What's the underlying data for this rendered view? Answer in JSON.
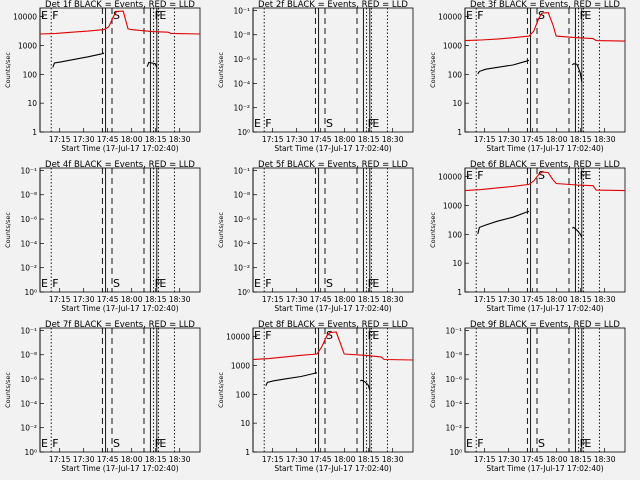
{
  "chart_data": [
    {
      "type": "line",
      "title": "Det 1f BLACK = Events, RED = LLD",
      "xlabel": "Start Time (17-Jul-17 17:02:40)",
      "ylabel": "Counts/sec",
      "yscale": "log",
      "ylim": [
        1,
        15000
      ],
      "ytick_labels": [
        "1",
        "10",
        "100",
        "1000",
        "10000"
      ],
      "xlim_minutes": [
        0,
        100
      ],
      "xtick_labels": [
        "17:15",
        "17:30",
        "17:45",
        "18:00",
        "18:15",
        "18:30"
      ],
      "markers": [
        "E",
        "F",
        "S",
        "F",
        "E"
      ],
      "has_data": true,
      "series": [
        {
          "name": "LLD",
          "color": "#e00000",
          "points": [
            [
              0,
              2000
            ],
            [
              10,
              2100
            ],
            [
              20,
              2300
            ],
            [
              30,
              2500
            ],
            [
              40,
              2800
            ],
            [
              43,
              3500
            ],
            [
              46,
              8000
            ],
            [
              48,
              11500
            ],
            [
              52,
              11800
            ],
            [
              55,
              3000
            ],
            [
              57,
              2800
            ],
            [
              70,
              2400
            ],
            [
              80,
              2300
            ],
            [
              82,
              2100
            ],
            [
              100,
              2000
            ]
          ]
        },
        {
          "name": "Events",
          "color": "#000000",
          "segments": [
            [
              [
                8,
                150
              ],
              [
                9,
                210
              ],
              [
                13,
                230
              ],
              [
                20,
                270
              ],
              [
                30,
                340
              ],
              [
                38,
                420
              ],
              [
                40,
                450
              ]
            ],
            [
              [
                67,
                160
              ],
              [
                68,
                220
              ],
              [
                70,
                210
              ],
              [
                72,
                200
              ],
              [
                73,
                150
              ]
            ]
          ]
        }
      ]
    },
    {
      "type": "line",
      "title": "Det 2f BLACK = Events, RED = LLD",
      "xlabel": "Start Time (17-Jul-17 17:02:40)",
      "ylabel": "Counts/sec",
      "yscale": "log",
      "ylim": [
        1,
        10
      ],
      "ytick_labels": [
        "10⁰",
        "10⁻²",
        "10⁻⁴",
        "10⁻⁶",
        "10⁻⁸",
        "10⁻¹"
      ],
      "xlim_minutes": [
        0,
        100
      ],
      "xtick_labels": [
        "17:15",
        "17:30",
        "17:45",
        "18:00",
        "18:15",
        "18:30"
      ],
      "markers": [
        "E",
        "F",
        "S",
        "F",
        "E"
      ],
      "has_data": false
    },
    {
      "type": "line",
      "title": "Det 3f BLACK = Events, RED = LLD",
      "xlabel": "Start Time (17-Jul-17 17:02:40)",
      "ylabel": "Counts/sec",
      "yscale": "log",
      "ylim": [
        1,
        15000
      ],
      "ytick_labels": [
        "1",
        "10",
        "100",
        "1000",
        "10000"
      ],
      "xlim_minutes": [
        0,
        100
      ],
      "xtick_labels": [
        "17:15",
        "17:30",
        "17:45",
        "18:00",
        "18:15",
        "18:30"
      ],
      "markers": [
        "E",
        "F",
        "S",
        "F",
        "E"
      ],
      "has_data": true,
      "series": [
        {
          "name": "LLD",
          "color": "#e00000",
          "points": [
            [
              0,
              1200
            ],
            [
              10,
              1250
            ],
            [
              20,
              1350
            ],
            [
              30,
              1500
            ],
            [
              40,
              1700
            ],
            [
              43,
              2500
            ],
            [
              46,
              6500
            ],
            [
              48,
              10000
            ],
            [
              52,
              10500
            ],
            [
              55,
              4000
            ],
            [
              57,
              1700
            ],
            [
              70,
              1500
            ],
            [
              80,
              1400
            ],
            [
              82,
              1200
            ],
            [
              100,
              1150
            ]
          ]
        },
        {
          "name": "Events",
          "color": "#000000",
          "segments": [
            [
              [
                8,
                90
              ],
              [
                9,
                110
              ],
              [
                13,
                130
              ],
              [
                20,
                150
              ],
              [
                30,
                180
              ],
              [
                38,
                240
              ],
              [
                40,
                260
              ]
            ],
            [
              [
                67,
                180
              ],
              [
                68,
                200
              ],
              [
                70,
                190
              ],
              [
                72,
                100
              ],
              [
                73,
                50
              ]
            ]
          ]
        }
      ]
    },
    {
      "type": "line",
      "title": "Det 4f BLACK = Events, RED = LLD",
      "xlabel": "Start Time (17-Jul-17 17:02:40)",
      "ylabel": "Counts/sec",
      "yscale": "log",
      "ylim": [
        1,
        10
      ],
      "ytick_labels": [
        "10⁰",
        "10⁻²",
        "10⁻⁴",
        "10⁻⁶",
        "10⁻⁸",
        "10⁻¹"
      ],
      "xlim_minutes": [
        0,
        100
      ],
      "xtick_labels": [
        "17:15",
        "17:30",
        "17:45",
        "18:00",
        "18:15",
        "18:30"
      ],
      "markers": [
        "E",
        "F",
        "S",
        "F",
        "E"
      ],
      "has_data": false
    },
    {
      "type": "line",
      "title": "Det 5f BLACK = Events, RED = LLD",
      "xlabel": "Start Time (17-Jul-17 17:02:40)",
      "ylabel": "Counts/sec",
      "yscale": "log",
      "ylim": [
        1,
        10
      ],
      "ytick_labels": [
        "10⁰",
        "10⁻²",
        "10⁻⁴",
        "10⁻⁶",
        "10⁻⁸",
        "10⁻¹"
      ],
      "xlim_minutes": [
        0,
        100
      ],
      "xtick_labels": [
        "17:15",
        "17:30",
        "17:45",
        "18:00",
        "18:15",
        "18:30"
      ],
      "markers": [
        "E",
        "F",
        "S",
        "F",
        "E"
      ],
      "has_data": false
    },
    {
      "type": "line",
      "title": "Det 6f BLACK = Events, RED = LLD",
      "xlabel": "Start Time (17-Jul-17 17:02:40)",
      "ylabel": "Counts/sec",
      "yscale": "log",
      "ylim": [
        1,
        15000
      ],
      "ytick_labels": [
        "1",
        "10",
        "100",
        "1000",
        "10000"
      ],
      "xlim_minutes": [
        0,
        100
      ],
      "xtick_labels": [
        "17:15",
        "17:30",
        "17:45",
        "18:00",
        "18:15",
        "18:30"
      ],
      "markers": [
        "E",
        "F",
        "S",
        "F",
        "E"
      ],
      "has_data": true,
      "series": [
        {
          "name": "LLD",
          "color": "#e00000",
          "points": [
            [
              0,
              2600
            ],
            [
              10,
              2800
            ],
            [
              20,
              3200
            ],
            [
              30,
              3600
            ],
            [
              40,
              4200
            ],
            [
              43,
              5500
            ],
            [
              46,
              9000
            ],
            [
              48,
              11000
            ],
            [
              52,
              10500
            ],
            [
              55,
              6000
            ],
            [
              57,
              4500
            ],
            [
              70,
              4000
            ],
            [
              80,
              3800
            ],
            [
              82,
              2700
            ],
            [
              100,
              2600
            ]
          ]
        },
        {
          "name": "Events",
          "color": "#000000",
          "segments": [
            [
              [
                8,
                90
              ],
              [
                9,
                150
              ],
              [
                13,
                180
              ],
              [
                20,
                240
              ],
              [
                30,
                330
              ],
              [
                38,
                480
              ],
              [
                40,
                520
              ]
            ],
            [
              [
                67,
                140
              ],
              [
                68,
                150
              ],
              [
                70,
                120
              ],
              [
                72,
                90
              ],
              [
                73,
                70
              ]
            ]
          ]
        }
      ]
    },
    {
      "type": "line",
      "title": "Det 7f BLACK = Events, RED = LLD",
      "xlabel": "Start Time (17-Jul-17 17:02:40)",
      "ylabel": "Counts/sec",
      "yscale": "log",
      "ylim": [
        1,
        10
      ],
      "ytick_labels": [
        "10⁰",
        "10⁻²",
        "10⁻⁴",
        "10⁻⁶",
        "10⁻⁸",
        "10⁻¹"
      ],
      "xlim_minutes": [
        0,
        100
      ],
      "xtick_labels": [
        "17:15",
        "17:30",
        "17:45",
        "18:00",
        "18:15",
        "18:30"
      ],
      "markers": [
        "E",
        "F",
        "S",
        "F",
        "E"
      ],
      "has_data": false
    },
    {
      "type": "line",
      "title": "Det 8f BLACK = Events, RED = LLD",
      "xlabel": "Start Time (17-Jul-17 17:02:40)",
      "ylabel": "Counts/sec",
      "yscale": "log",
      "ylim": [
        1,
        15000
      ],
      "ytick_labels": [
        "1",
        "10",
        "100",
        "1000",
        "10000"
      ],
      "xlim_minutes": [
        0,
        100
      ],
      "xtick_labels": [
        "17:15",
        "17:30",
        "17:45",
        "18:00",
        "18:15",
        "18:30"
      ],
      "markers": [
        "E",
        "F",
        "S",
        "F",
        "E"
      ],
      "has_data": true,
      "series": [
        {
          "name": "LLD",
          "color": "#e00000",
          "points": [
            [
              0,
              1300
            ],
            [
              10,
              1400
            ],
            [
              20,
              1600
            ],
            [
              30,
              1800
            ],
            [
              40,
              2000
            ],
            [
              43,
              3500
            ],
            [
              46,
              8000
            ],
            [
              48,
              10500
            ],
            [
              52,
              11000
            ],
            [
              55,
              4000
            ],
            [
              57,
              2000
            ],
            [
              70,
              1800
            ],
            [
              80,
              1600
            ],
            [
              82,
              1300
            ],
            [
              100,
              1250
            ]
          ]
        },
        {
          "name": "Events",
          "color": "#000000",
          "segments": [
            [
              [
                8,
                170
              ],
              [
                9,
                220
              ],
              [
                13,
                250
              ],
              [
                20,
                290
              ],
              [
                30,
                350
              ],
              [
                38,
                440
              ],
              [
                40,
                470
              ]
            ],
            [
              [
                67,
                250
              ],
              [
                68,
                260
              ],
              [
                70,
                230
              ],
              [
                72,
                180
              ],
              [
                73,
                120
              ]
            ]
          ]
        }
      ]
    },
    {
      "type": "line",
      "title": "Det 9f BLACK = Events, RED = LLD",
      "xlabel": "Start Time (17-Jul-17 17:02:40)",
      "ylabel": "Counts/sec",
      "yscale": "log",
      "ylim": [
        1,
        10
      ],
      "ytick_labels": [
        "10⁰",
        "10⁻²",
        "10⁻⁴",
        "10⁻⁶",
        "10⁻⁸",
        "10⁻¹"
      ],
      "xlim_minutes": [
        0,
        100
      ],
      "xtick_labels": [
        "17:15",
        "17:30",
        "17:45",
        "18:00",
        "18:15",
        "18:30"
      ],
      "markers": [
        "E",
        "F",
        "S",
        "F",
        "E"
      ],
      "has_data": false
    }
  ],
  "time_axis": {
    "tick_minutes": [
      12.3,
      27.3,
      42.3,
      57.3,
      72.3,
      87.3
    ],
    "marker_lines": [
      {
        "minute": 0,
        "style": "solid",
        "marker": "E"
      },
      {
        "minute": 7,
        "style": "dotted",
        "marker": "F"
      },
      {
        "minute": 39,
        "style": "dashed"
      },
      {
        "minute": 41,
        "style": "solid"
      },
      {
        "minute": 45,
        "style": "dashed",
        "marker": "S"
      },
      {
        "minute": 65,
        "style": "dashed"
      },
      {
        "minute": 69,
        "style": "solid"
      },
      {
        "minute": 71,
        "style": "dotted",
        "marker": "F"
      },
      {
        "minute": 73,
        "style": "solid"
      },
      {
        "minute": 74,
        "style": "dotted",
        "marker": "E"
      },
      {
        "minute": 84,
        "style": "dotted"
      }
    ]
  }
}
